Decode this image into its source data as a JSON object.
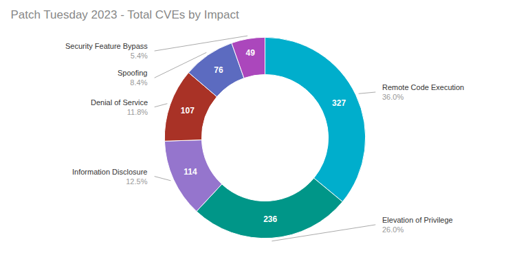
{
  "chart_data": {
    "type": "pie",
    "title": "Patch Tuesday 2023 - Total CVEs by Impact",
    "categories": [
      "Remote Code Execution",
      "Elevation of Privilege",
      "Information Disclosure",
      "Denial of Service",
      "Spoofing",
      "Security Feature Bypass"
    ],
    "values": [
      327,
      236,
      114,
      107,
      76,
      49
    ],
    "colors": [
      "#00AECC",
      "#009688",
      "#9575CD",
      "#A93226",
      "#5C6BC0",
      "#AB47BC"
    ],
    "data_labels": true,
    "percentages": [
      36.0,
      26.0,
      12.5,
      11.8,
      8.4,
      5.4
    ],
    "percentage_labels": [
      "36.0%",
      "26.0%",
      "12.5%",
      "11.8%",
      "8.4%",
      "5.4%"
    ]
  }
}
